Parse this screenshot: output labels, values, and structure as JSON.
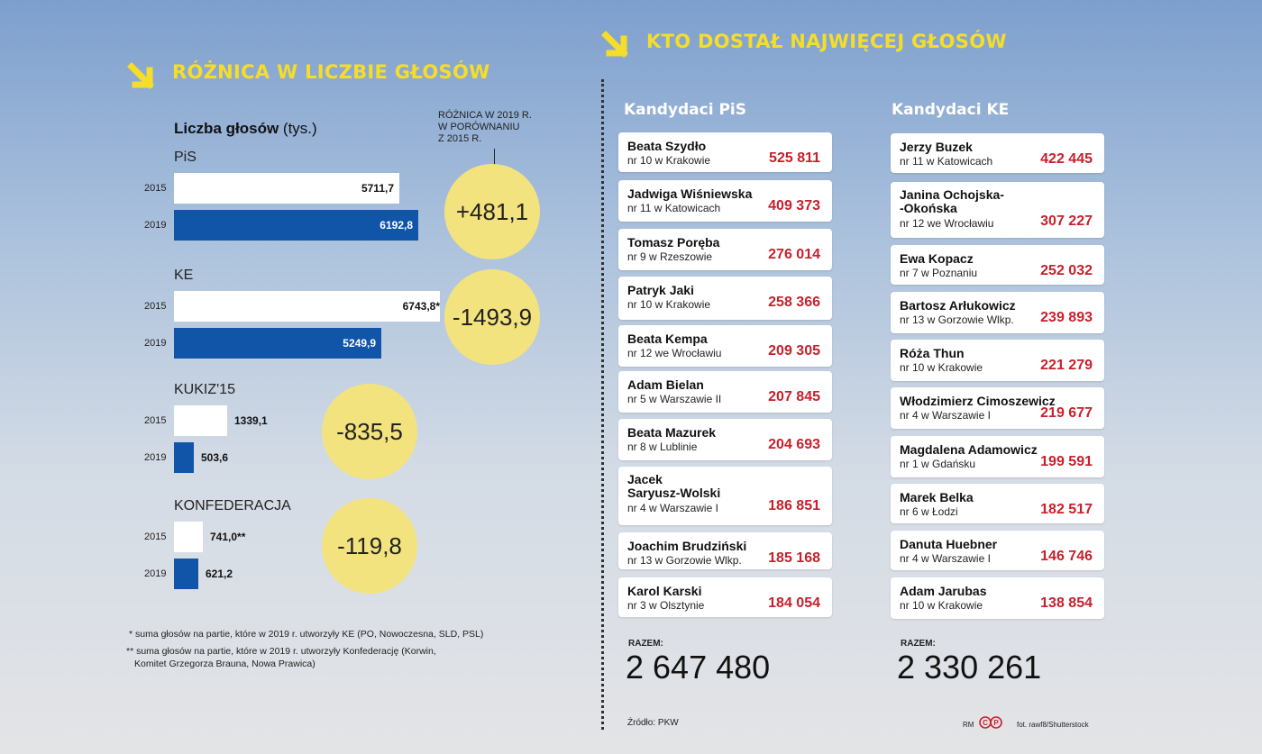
{
  "left": {
    "title": "RÓŻNICA W LICZBIE GŁOSÓW",
    "ylabel_bold": "Liczba głosów",
    "ylabel_unit": " (tys.)",
    "diff_note": [
      "RÓŻNICA W 2019 R.",
      "W PORÓWNANIU",
      "Z 2015 R."
    ],
    "footnotes": [
      "* suma głosów na partie, które w 2019 r. utworzyły KE (PO, Nowoczesna, SLD, PSL)",
      "** suma głosów na partie, które w 2019 r. utworzyły Konfederację (Korwin,",
      "Komitet Grzegorza Brauna, Nowa Prawica)"
    ]
  },
  "chart_data": {
    "type": "bar",
    "title": "RÓŻNICA W LICZBIE GŁOSÓW",
    "ylabel": "Liczba głosów (tys.)",
    "categories": [
      "PiS",
      "KE",
      "KUKIZ'15",
      "KONFEDERACJA"
    ],
    "series": [
      {
        "name": "2015",
        "values": [
          5711.7,
          6743.8,
          1339.1,
          741.0
        ],
        "labels": [
          "5711,7",
          "6743,8*",
          "1339,1",
          "741,0**"
        ],
        "color": "#ffffff"
      },
      {
        "name": "2019",
        "values": [
          6192.8,
          5249.9,
          503.6,
          621.2
        ],
        "labels": [
          "6192,8",
          "5249,9",
          "503,6",
          "621,2"
        ],
        "color": "#1055a8"
      }
    ],
    "differences": [
      "+481,1",
      "-1493,9",
      "-835,5",
      "-119,8"
    ]
  },
  "right": {
    "title": "KTO DOSTAŁ NAJWIĘCEJ GŁOSÓW",
    "pis_heading": "Kandydaci PiS",
    "ke_heading": "Kandydaci KE",
    "pis": [
      {
        "name": "Beata Szydło",
        "sub": "nr 10 w Krakowie",
        "votes": "525 811"
      },
      {
        "name": "Jadwiga Wiśniewska",
        "sub": "nr 11 w Katowicach",
        "votes": "409 373"
      },
      {
        "name": "Tomasz Poręba",
        "sub": "nr 9 w Rzeszowie",
        "votes": "276 014"
      },
      {
        "name": "Patryk Jaki",
        "sub": "nr 10 w Krakowie",
        "votes": "258 366"
      },
      {
        "name": "Beata Kempa",
        "sub": "nr 12 we Wrocławiu",
        "votes": "209 305"
      },
      {
        "name": "Adam Bielan",
        "sub": "nr 5 w Warszawie II",
        "votes": "207 845"
      },
      {
        "name": "Beata Mazurek",
        "sub": "nr 8 w Lublinie",
        "votes": "204 693"
      },
      {
        "name": "Jacek\nSaryusz-Wolski",
        "sub": "nr 4 w Warszawie I",
        "votes": "186 851"
      },
      {
        "name": "Joachim Brudziński",
        "sub": "nr 13 w Gorzowie Wlkp.",
        "votes": "185 168"
      },
      {
        "name": "Karol Karski",
        "sub": "nr 3 w Olsztynie",
        "votes": "184 054"
      }
    ],
    "ke": [
      {
        "name": "Jerzy Buzek",
        "sub": "nr 11 w Katowicach",
        "votes": "422 445"
      },
      {
        "name": "Janina Ochojska-\n-Okońska",
        "sub": "nr 12 we Wrocławiu",
        "votes": "307 227"
      },
      {
        "name": "Ewa Kopacz",
        "sub": "nr 7 w Poznaniu",
        "votes": "252 032"
      },
      {
        "name": "Bartosz Arłukowicz",
        "sub": "nr 13 w Gorzowie Wlkp.",
        "votes": "239 893"
      },
      {
        "name": "Róża Thun",
        "sub": "nr 10 w Krakowie",
        "votes": "221 279"
      },
      {
        "name": "Włodzimierz Cimoszewicz",
        "sub": "nr 4 w Warszawie I",
        "votes": "219 677"
      },
      {
        "name": "Magdalena Adamowicz",
        "sub": "nr 1 w Gdańsku",
        "votes": "199 591"
      },
      {
        "name": "Marek Belka",
        "sub": "nr 6 w Łodzi",
        "votes": "182 517"
      },
      {
        "name": "Danuta Huebner",
        "sub": "nr 4 w Warszawie I",
        "votes": "146 746"
      },
      {
        "name": "Adam Jarubas",
        "sub": "nr 10 w Krakowie",
        "votes": "138 854"
      }
    ],
    "razem_label": "RAZEM:",
    "pis_total": "2 647 480",
    "ke_total": "2 330 261",
    "source": "Źródło: PKW",
    "rm": "RM",
    "photo": "fot. rawf8/Shutterstock"
  },
  "colors": {
    "accent": "#f5dd2a",
    "bar2019": "#1055a8",
    "circle": "#f3e37e",
    "votes": "#c8202c"
  },
  "icons": [
    "arrow-down-right-icon",
    "cp-logo-icon"
  ]
}
